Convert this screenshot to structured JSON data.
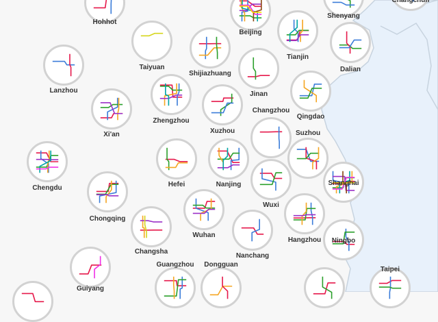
{
  "colors": {
    "land": "#f7f7f7",
    "sea": "#e8f1fb",
    "coast": "#c7d3df",
    "circle_fill": "#ffffff",
    "circle_border": "#d2d2d2",
    "label": "#333333"
  },
  "cities": [
    {
      "id": "hohhot",
      "label": "Hohhot",
      "lines": [
        "#e6194b",
        "#3c7dd9"
      ]
    },
    {
      "id": "beijing",
      "label": "Beijing",
      "lines": [
        "#e6194b",
        "#3c7dd9",
        "#2ca02c",
        "#f5a623",
        "#9b30c7",
        "#00a6a6",
        "#f032e6",
        "#8b4513",
        "#ffd500"
      ]
    },
    {
      "id": "shenyang",
      "label": "Shenyang",
      "lines": [
        "#e6194b",
        "#2ca02c",
        "#3c7dd9"
      ]
    },
    {
      "id": "changchun",
      "label": "Changchun",
      "lines": [
        "#e6194b",
        "#3c7dd9"
      ]
    },
    {
      "id": "taiyuan",
      "label": "Taiyuan",
      "lines": [
        "#d6d61c"
      ]
    },
    {
      "id": "shijiazhuang",
      "label": "Shijiazhuang",
      "lines": [
        "#e6194b",
        "#3c7dd9",
        "#f5a623",
        "#2ca02c"
      ]
    },
    {
      "id": "tianjin",
      "label": "Tianjin",
      "lines": [
        "#e6194b",
        "#3c7dd9",
        "#2ca02c",
        "#f5a623",
        "#9b30c7",
        "#00a6a6"
      ]
    },
    {
      "id": "dalian",
      "label": "Dalian",
      "lines": [
        "#2ca02c",
        "#e6194b",
        "#3c7dd9"
      ]
    },
    {
      "id": "lanzhou",
      "label": "Lanzhou",
      "lines": [
        "#3c7dd9",
        "#e6194b"
      ]
    },
    {
      "id": "jinan",
      "label": "Jinan",
      "lines": [
        "#e6194b",
        "#2ca02c"
      ]
    },
    {
      "id": "xian",
      "label": "Xi'an",
      "lines": [
        "#e6194b",
        "#3c7dd9",
        "#2ca02c",
        "#f5a623",
        "#9b30c7"
      ]
    },
    {
      "id": "zhengzhou",
      "label": "Zhengzhou",
      "lines": [
        "#e6194b",
        "#3c7dd9",
        "#2ca02c",
        "#f5a623",
        "#9b30c7",
        "#00a6a6"
      ]
    },
    {
      "id": "qingdao",
      "label": "Qingdao",
      "lines": [
        "#3c7dd9",
        "#f5a623",
        "#2ca02c"
      ]
    },
    {
      "id": "xuzhou",
      "label": "Xuzhou",
      "lines": [
        "#e6194b",
        "#2ca02c",
        "#3c7dd9"
      ]
    },
    {
      "id": "changzhou",
      "label": "Changzhou",
      "lines": [
        "#e6194b",
        "#3c7dd9"
      ]
    },
    {
      "id": "chengdu",
      "label": "Chengdu",
      "lines": [
        "#e6194b",
        "#3c7dd9",
        "#2ca02c",
        "#f5a623",
        "#9b30c7",
        "#00a6a6",
        "#f032e6"
      ]
    },
    {
      "id": "suzhou",
      "label": "Suzhou",
      "lines": [
        "#3c7dd9",
        "#e6194b",
        "#2ca02c",
        "#f5a623"
      ]
    },
    {
      "id": "hefei",
      "label": "Hefei",
      "lines": [
        "#e6194b",
        "#2ca02c",
        "#f5a623"
      ]
    },
    {
      "id": "nanjing",
      "label": "Nanjing",
      "lines": [
        "#e6194b",
        "#3c7dd9",
        "#2ca02c",
        "#f5a623",
        "#9b30c7",
        "#00a6a6"
      ]
    },
    {
      "id": "wuxi",
      "label": "Wuxi",
      "lines": [
        "#e6194b",
        "#3c7dd9",
        "#2ca02c"
      ]
    },
    {
      "id": "shanghai",
      "label": "Shanghai",
      "lines": [
        "#e6194b",
        "#3c7dd9",
        "#2ca02c",
        "#f5a623",
        "#9b30c7",
        "#00a6a6",
        "#f032e6",
        "#8b4513",
        "#ffd500"
      ]
    },
    {
      "id": "chongqing",
      "label": "Chongqing",
      "lines": [
        "#e6194b",
        "#3c7dd9",
        "#2ca02c",
        "#f5a623",
        "#9b30c7"
      ]
    },
    {
      "id": "wuhan",
      "label": "Wuhan",
      "lines": [
        "#e6194b",
        "#3c7dd9",
        "#2ca02c",
        "#f5a623",
        "#9b30c7"
      ]
    },
    {
      "id": "changsha",
      "label": "Changsha",
      "lines": [
        "#e6194b",
        "#f5a623",
        "#9b30c7",
        "#d6d61c"
      ]
    },
    {
      "id": "nanchang",
      "label": "Nanchang",
      "lines": [
        "#e6194b",
        "#3c7dd9"
      ]
    },
    {
      "id": "hangzhou",
      "label": "Hangzhou",
      "lines": [
        "#e6194b",
        "#3c7dd9",
        "#2ca02c",
        "#f5a623",
        "#9b30c7"
      ]
    },
    {
      "id": "ningbo",
      "label": "Ningbo",
      "lines": [
        "#e6194b",
        "#3c7dd9",
        "#2ca02c"
      ]
    },
    {
      "id": "guangzhou",
      "label": "Guangzhou",
      "lines": [
        "#e6194b",
        "#3c7dd9",
        "#2ca02c",
        "#f5a623"
      ]
    },
    {
      "id": "dongguan",
      "label": "Dongguan",
      "lines": [
        "#f5a623",
        "#e6194b"
      ]
    },
    {
      "id": "taipei",
      "label": "Taipei",
      "lines": [
        "#e6194b",
        "#3c7dd9",
        "#2ca02c"
      ]
    },
    {
      "id": "guiyang",
      "label": "Guiyang",
      "lines": [
        "#e6194b",
        "#f032e6"
      ]
    },
    {
      "id": "kunming",
      "label": "",
      "lines": [
        "#e6194b"
      ]
    },
    {
      "id": "fuzhou",
      "label": "",
      "lines": [
        "#e6194b",
        "#2ca02c"
      ]
    }
  ]
}
